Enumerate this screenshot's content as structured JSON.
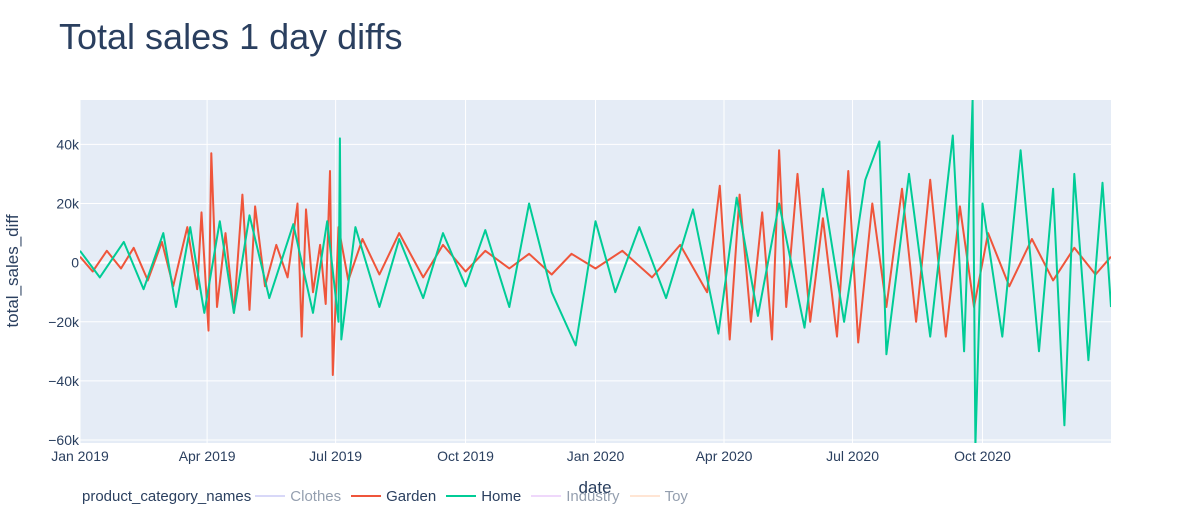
{
  "chart_data": {
    "type": "line",
    "title": "Total sales 1 day diffs",
    "xlabel": "date",
    "ylabel": "total_sales_diff",
    "xlim": [
      "2019-01-01",
      "2020-12-31"
    ],
    "ylim": [
      -61000,
      55000
    ],
    "x_ticks": [
      {
        "date": "2019-01-01",
        "label": "Jan 2019"
      },
      {
        "date": "2019-04-01",
        "label": "Apr 2019"
      },
      {
        "date": "2019-07-01",
        "label": "Jul 2019"
      },
      {
        "date": "2019-10-01",
        "label": "Oct 2019"
      },
      {
        "date": "2020-01-01",
        "label": "Jan 2020"
      },
      {
        "date": "2020-04-01",
        "label": "Apr 2020"
      },
      {
        "date": "2020-07-01",
        "label": "Jul 2020"
      },
      {
        "date": "2020-10-01",
        "label": "Oct 2020"
      }
    ],
    "y_ticks": [
      {
        "value": 40000,
        "label": "40k"
      },
      {
        "value": 20000,
        "label": "20k"
      },
      {
        "value": 0,
        "label": "0"
      },
      {
        "value": -20000,
        "label": "−20k"
      },
      {
        "value": -40000,
        "label": "−40k"
      },
      {
        "value": -60000,
        "label": "−60k"
      }
    ],
    "grid": true,
    "legend": {
      "title": "product_category_names",
      "placement": "bottom-left",
      "orientation": "horizontal"
    },
    "series": [
      {
        "name": "Clothes",
        "color": "#b3b3f3",
        "visible": false,
        "points": []
      },
      {
        "name": "Garden",
        "color": "#ef553b",
        "visible": true,
        "points": [
          [
            "2019-01-01",
            2000
          ],
          [
            "2019-01-10",
            -3000
          ],
          [
            "2019-01-20",
            4000
          ],
          [
            "2019-01-30",
            -2000
          ],
          [
            "2019-02-08",
            5000
          ],
          [
            "2019-02-18",
            -6000
          ],
          [
            "2019-02-28",
            7000
          ],
          [
            "2019-03-08",
            -8000
          ],
          [
            "2019-03-18",
            12000
          ],
          [
            "2019-03-25",
            -9000
          ],
          [
            "2019-03-28",
            17000
          ],
          [
            "2019-04-02",
            -23000
          ],
          [
            "2019-04-04",
            37000
          ],
          [
            "2019-04-08",
            -15000
          ],
          [
            "2019-04-14",
            10000
          ],
          [
            "2019-04-20",
            -17000
          ],
          [
            "2019-04-26",
            23000
          ],
          [
            "2019-05-01",
            -16000
          ],
          [
            "2019-05-05",
            19000
          ],
          [
            "2019-05-12",
            -8000
          ],
          [
            "2019-05-20",
            6000
          ],
          [
            "2019-05-28",
            -5000
          ],
          [
            "2019-06-04",
            20000
          ],
          [
            "2019-06-07",
            -25000
          ],
          [
            "2019-06-10",
            18000
          ],
          [
            "2019-06-15",
            -10000
          ],
          [
            "2019-06-20",
            6000
          ],
          [
            "2019-06-24",
            -14000
          ],
          [
            "2019-06-27",
            31000
          ],
          [
            "2019-06-29",
            -38000
          ],
          [
            "2019-07-03",
            12000
          ],
          [
            "2019-07-10",
            -6000
          ],
          [
            "2019-07-20",
            8000
          ],
          [
            "2019-08-01",
            -4000
          ],
          [
            "2019-08-15",
            10000
          ],
          [
            "2019-09-01",
            -5000
          ],
          [
            "2019-09-15",
            6000
          ],
          [
            "2019-10-01",
            -3000
          ],
          [
            "2019-10-15",
            4000
          ],
          [
            "2019-11-01",
            -2000
          ],
          [
            "2019-11-15",
            3000
          ],
          [
            "2019-12-01",
            -4000
          ],
          [
            "2019-12-15",
            3000
          ],
          [
            "2020-01-01",
            -2000
          ],
          [
            "2020-01-20",
            4000
          ],
          [
            "2020-02-10",
            -5000
          ],
          [
            "2020-03-01",
            6000
          ],
          [
            "2020-03-20",
            -10000
          ],
          [
            "2020-03-29",
            26000
          ],
          [
            "2020-04-05",
            -26000
          ],
          [
            "2020-04-12",
            23000
          ],
          [
            "2020-04-20",
            -20000
          ],
          [
            "2020-04-28",
            17000
          ],
          [
            "2020-05-05",
            -26000
          ],
          [
            "2020-05-10",
            38000
          ],
          [
            "2020-05-15",
            -15000
          ],
          [
            "2020-05-23",
            30000
          ],
          [
            "2020-06-01",
            -20000
          ],
          [
            "2020-06-10",
            15000
          ],
          [
            "2020-06-20",
            -25000
          ],
          [
            "2020-06-28",
            31000
          ],
          [
            "2020-07-05",
            -27000
          ],
          [
            "2020-07-15",
            20000
          ],
          [
            "2020-07-25",
            -15000
          ],
          [
            "2020-08-05",
            25000
          ],
          [
            "2020-08-15",
            -20000
          ],
          [
            "2020-08-25",
            28000
          ],
          [
            "2020-09-05",
            -25000
          ],
          [
            "2020-09-15",
            19000
          ],
          [
            "2020-09-25",
            -15000
          ],
          [
            "2020-10-05",
            10000
          ],
          [
            "2020-10-20",
            -8000
          ],
          [
            "2020-11-05",
            8000
          ],
          [
            "2020-11-20",
            -6000
          ],
          [
            "2020-12-05",
            5000
          ],
          [
            "2020-12-20",
            -4000
          ],
          [
            "2020-12-31",
            2000
          ]
        ]
      },
      {
        "name": "Home",
        "color": "#00cc96",
        "visible": true,
        "points": [
          [
            "2019-01-01",
            4000
          ],
          [
            "2019-01-15",
            -5000
          ],
          [
            "2019-02-01",
            7000
          ],
          [
            "2019-02-15",
            -9000
          ],
          [
            "2019-03-01",
            10000
          ],
          [
            "2019-03-10",
            -15000
          ],
          [
            "2019-03-20",
            12000
          ],
          [
            "2019-03-30",
            -17000
          ],
          [
            "2019-04-10",
            14000
          ],
          [
            "2019-04-20",
            -17000
          ],
          [
            "2019-05-01",
            16000
          ],
          [
            "2019-05-15",
            -12000
          ],
          [
            "2019-06-01",
            13000
          ],
          [
            "2019-06-15",
            -17000
          ],
          [
            "2019-06-25",
            14000
          ],
          [
            "2019-07-03",
            -20000
          ],
          [
            "2019-07-04",
            42000
          ],
          [
            "2019-07-05",
            -26000
          ],
          [
            "2019-07-15",
            12000
          ],
          [
            "2019-08-01",
            -15000
          ],
          [
            "2019-08-15",
            8000
          ],
          [
            "2019-09-01",
            -12000
          ],
          [
            "2019-09-15",
            10000
          ],
          [
            "2019-10-01",
            -8000
          ],
          [
            "2019-10-15",
            11000
          ],
          [
            "2019-11-01",
            -15000
          ],
          [
            "2019-11-15",
            20000
          ],
          [
            "2019-12-01",
            -10000
          ],
          [
            "2019-12-18",
            -28000
          ],
          [
            "2020-01-01",
            14000
          ],
          [
            "2020-01-15",
            -10000
          ],
          [
            "2020-02-01",
            12000
          ],
          [
            "2020-02-20",
            -12000
          ],
          [
            "2020-03-10",
            18000
          ],
          [
            "2020-03-28",
            -24000
          ],
          [
            "2020-04-10",
            22000
          ],
          [
            "2020-04-25",
            -18000
          ],
          [
            "2020-05-10",
            20000
          ],
          [
            "2020-05-28",
            -22000
          ],
          [
            "2020-06-10",
            25000
          ],
          [
            "2020-06-25",
            -20000
          ],
          [
            "2020-07-10",
            28000
          ],
          [
            "2020-07-20",
            41000
          ],
          [
            "2020-07-25",
            -31000
          ],
          [
            "2020-08-10",
            30000
          ],
          [
            "2020-08-25",
            -25000
          ],
          [
            "2020-09-10",
            43000
          ],
          [
            "2020-09-18",
            -30000
          ],
          [
            "2020-09-24",
            55000
          ],
          [
            "2020-09-26",
            -62000
          ],
          [
            "2020-10-01",
            20000
          ],
          [
            "2020-10-15",
            -25000
          ],
          [
            "2020-10-28",
            38000
          ],
          [
            "2020-11-10",
            -30000
          ],
          [
            "2020-11-20",
            25000
          ],
          [
            "2020-11-28",
            -55000
          ],
          [
            "2020-12-05",
            30000
          ],
          [
            "2020-12-15",
            -33000
          ],
          [
            "2020-12-25",
            27000
          ],
          [
            "2020-12-31",
            -15000
          ]
        ]
      },
      {
        "name": "Industry",
        "color": "#e0b3f8",
        "visible": false,
        "points": []
      },
      {
        "name": "Toy",
        "color": "#ffcdaa",
        "visible": false,
        "points": []
      }
    ]
  }
}
